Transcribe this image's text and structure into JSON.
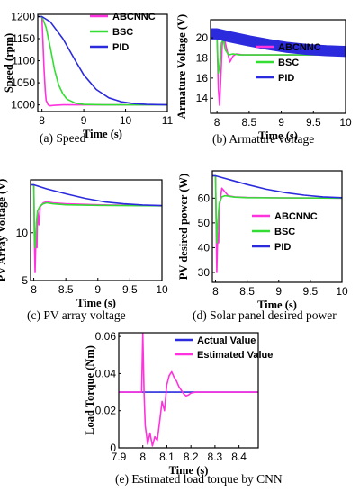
{
  "captions": {
    "a": "(a)  Speed",
    "b": "(b)  Armature voltage",
    "c": "(c)  PV array voltage",
    "d": "(d)  Solar panel desired power",
    "e": "(e)  Estimated load torque by CNN"
  },
  "colors": {
    "ABCNNC": "#ff33dd",
    "BSC": "#33dd33",
    "PID": "#2b2bdd",
    "Actual Value": "#2b2bdd",
    "Estimated Value": "#ff33dd",
    "axis": "#000000"
  },
  "chart_data": [
    {
      "id": "a",
      "type": "line",
      "xlabel": "Time (s)",
      "ylabel": "Speed (rpm)",
      "xlim": [
        7.9,
        11
      ],
      "ylim": [
        985,
        1205
      ],
      "xticks": [
        8,
        9,
        10,
        11
      ],
      "yticks": [
        1000,
        1050,
        1100,
        1150,
        1200
      ],
      "legend_position": "top-right",
      "series": [
        {
          "name": "ABCNNC",
          "x": [
            7.9,
            8.0,
            8.02,
            8.05,
            8.08,
            8.1,
            8.15,
            8.2,
            8.3,
            8.5,
            9,
            10,
            11
          ],
          "y": [
            1200,
            1200,
            1150,
            1080,
            1030,
            1010,
            1000,
            998,
            999,
            1000,
            1000,
            1000,
            1000
          ]
        },
        {
          "name": "BSC",
          "x": [
            7.9,
            8.0,
            8.1,
            8.2,
            8.3,
            8.4,
            8.5,
            8.6,
            8.8,
            9.0,
            9.5,
            10,
            11
          ],
          "y": [
            1200,
            1200,
            1175,
            1130,
            1080,
            1045,
            1025,
            1013,
            1004,
            1001,
            1000,
            1000,
            1000
          ]
        },
        {
          "name": "PID",
          "x": [
            7.9,
            8.0,
            8.2,
            8.5,
            8.8,
            9.0,
            9.3,
            9.6,
            9.9,
            10.2,
            10.5,
            11
          ],
          "y": [
            1200,
            1200,
            1188,
            1150,
            1100,
            1068,
            1035,
            1016,
            1007,
            1003,
            1001,
            1000
          ]
        }
      ]
    },
    {
      "id": "b",
      "type": "line",
      "xlabel": "Time (s)",
      "ylabel": "Armature Voltage (V)",
      "xlim": [
        7.9,
        10
      ],
      "ylim": [
        12.5,
        21.8
      ],
      "xticks": [
        8,
        8.5,
        9,
        9.5,
        10
      ],
      "yticks": [
        14,
        16,
        18,
        20
      ],
      "legend_position": "right",
      "series": [
        {
          "name": "ABCNNC",
          "x": [
            7.9,
            8.0,
            8.02,
            8.04,
            8.06,
            8.08,
            8.1,
            8.12,
            8.15,
            8.2,
            8.25,
            8.3,
            8.4,
            8.6,
            9.0,
            10
          ],
          "y": [
            20.3,
            20.3,
            15,
            13.3,
            16,
            19.2,
            20.6,
            19.8,
            18.9,
            17.6,
            18.2,
            18.4,
            18.3,
            18.3,
            18.3,
            18.3
          ]
        },
        {
          "name": "BSC",
          "x": [
            7.9,
            8.0,
            8.02,
            8.04,
            8.07,
            8.1,
            8.13,
            8.18,
            8.25,
            8.35,
            8.5,
            9.0,
            10
          ],
          "y": [
            20.3,
            20.3,
            16.5,
            17.2,
            19.5,
            19.8,
            18.8,
            18.3,
            18.4,
            18.3,
            18.3,
            18.3,
            18.3
          ]
        },
        {
          "name": "PID",
          "x": [
            7.9,
            8.0,
            8.2,
            8.5,
            8.8,
            9.1,
            9.4,
            9.7,
            10
          ],
          "y": [
            20.4,
            20.4,
            20.1,
            19.7,
            19.35,
            19.05,
            18.85,
            18.72,
            18.65
          ]
        }
      ],
      "pid_band_halfwidth": 0.55
    },
    {
      "id": "c",
      "type": "line",
      "xlabel": "Time (s)",
      "ylabel": "PV Array Voltage (V)",
      "xlim": [
        7.95,
        10
      ],
      "ylim": [
        5.2,
        15.3
      ],
      "xticks": [
        8,
        8.5,
        9,
        9.5,
        10
      ],
      "yticks": [
        5,
        10
      ],
      "series": [
        {
          "name": "ABCNNC",
          "x": [
            7.95,
            8.0,
            8.01,
            8.02,
            8.03,
            8.04,
            8.05,
            8.06,
            8.08,
            8.1,
            8.15,
            8.2,
            8.3,
            8.5,
            9,
            10
          ],
          "y": [
            14.8,
            14.8,
            9,
            6,
            8.5,
            11,
            8.5,
            12.2,
            10.8,
            12.6,
            13,
            13.1,
            13.0,
            12.9,
            12.8,
            12.7
          ]
        },
        {
          "name": "BSC",
          "x": [
            7.95,
            8.0,
            8.01,
            8.02,
            8.04,
            8.06,
            8.1,
            8.15,
            8.2,
            8.3,
            8.5,
            9,
            10
          ],
          "y": [
            14.8,
            14.8,
            9.5,
            8.5,
            11,
            12.2,
            12.7,
            12.9,
            13.0,
            12.9,
            12.8,
            12.75,
            12.7
          ]
        },
        {
          "name": "PID",
          "x": [
            7.95,
            8.0,
            8.2,
            8.5,
            8.8,
            9.1,
            9.4,
            9.7,
            10
          ],
          "y": [
            14.8,
            14.8,
            14.4,
            13.9,
            13.45,
            13.1,
            12.9,
            12.78,
            12.72
          ]
        }
      ]
    },
    {
      "id": "d",
      "type": "line",
      "xlabel": "Time (s)",
      "ylabel": "PV desired power (W)",
      "xlim": [
        7.95,
        10
      ],
      "ylim": [
        26,
        71
      ],
      "xticks": [
        8,
        8.5,
        9,
        9.5,
        10
      ],
      "yticks": [
        30,
        40,
        50,
        60
      ],
      "legend_position": "bottom-right",
      "series": [
        {
          "name": "ABCNNC",
          "x": [
            7.95,
            8.0,
            8.01,
            8.02,
            8.03,
            8.04,
            8.05,
            8.06,
            8.08,
            8.1,
            8.15,
            8.2,
            8.3,
            8.5,
            9,
            10
          ],
          "y": [
            69,
            69,
            50,
            30,
            40,
            46,
            42,
            56,
            60,
            64,
            62.5,
            61,
            60.5,
            60.3,
            60.1,
            60
          ]
        },
        {
          "name": "BSC",
          "x": [
            7.95,
            8.0,
            8.01,
            8.02,
            8.04,
            8.06,
            8.1,
            8.15,
            8.2,
            8.3,
            8.5,
            9,
            10
          ],
          "y": [
            69,
            69,
            52,
            42,
            52,
            58,
            60.5,
            61,
            60.8,
            60.4,
            60.2,
            60.1,
            60
          ]
        },
        {
          "name": "PID",
          "x": [
            7.95,
            8.0,
            8.2,
            8.5,
            8.8,
            9.1,
            9.4,
            9.7,
            10
          ],
          "y": [
            69,
            69,
            67.6,
            65.5,
            63.6,
            62.2,
            61.2,
            60.5,
            60.2
          ]
        }
      ]
    },
    {
      "id": "e",
      "type": "line",
      "xlabel": "Time (s)",
      "ylabel": "Load Torque (Nm)",
      "xlim": [
        7.9,
        8.48
      ],
      "ylim": [
        0,
        0.062
      ],
      "xticks": [
        7.9,
        8,
        8.1,
        8.2,
        8.3,
        8.4
      ],
      "xtick_labels": [
        "7.9",
        "8",
        "8.1",
        "8.2",
        "8.3",
        "8.4"
      ],
      "yticks": [
        0,
        0.02,
        0.04,
        0.06
      ],
      "ytick_labels": [
        "0",
        "0.02",
        "0.04",
        "0.06"
      ],
      "legend_position": "top-right",
      "series": [
        {
          "name": "Actual Value",
          "x": [
            7.9,
            8.48
          ],
          "y": [
            0.03,
            0.03
          ]
        },
        {
          "name": "Estimated Value",
          "x": [
            7.9,
            7.995,
            8.0,
            8.005,
            8.01,
            8.02,
            8.03,
            8.04,
            8.05,
            8.06,
            8.07,
            8.08,
            8.09,
            8.1,
            8.11,
            8.12,
            8.13,
            8.14,
            8.15,
            8.16,
            8.17,
            8.18,
            8.19,
            8.2,
            8.22,
            8.25,
            8.48
          ],
          "y": [
            0.03,
            0.03,
            0.062,
            0.03,
            0.012,
            0.002,
            0.008,
            0.001,
            0.006,
            0.004,
            0.014,
            0.025,
            0.02,
            0.034,
            0.039,
            0.041,
            0.038,
            0.036,
            0.033,
            0.031,
            0.029,
            0.028,
            0.0285,
            0.0295,
            0.03,
            0.03,
            0.03
          ]
        }
      ]
    }
  ]
}
